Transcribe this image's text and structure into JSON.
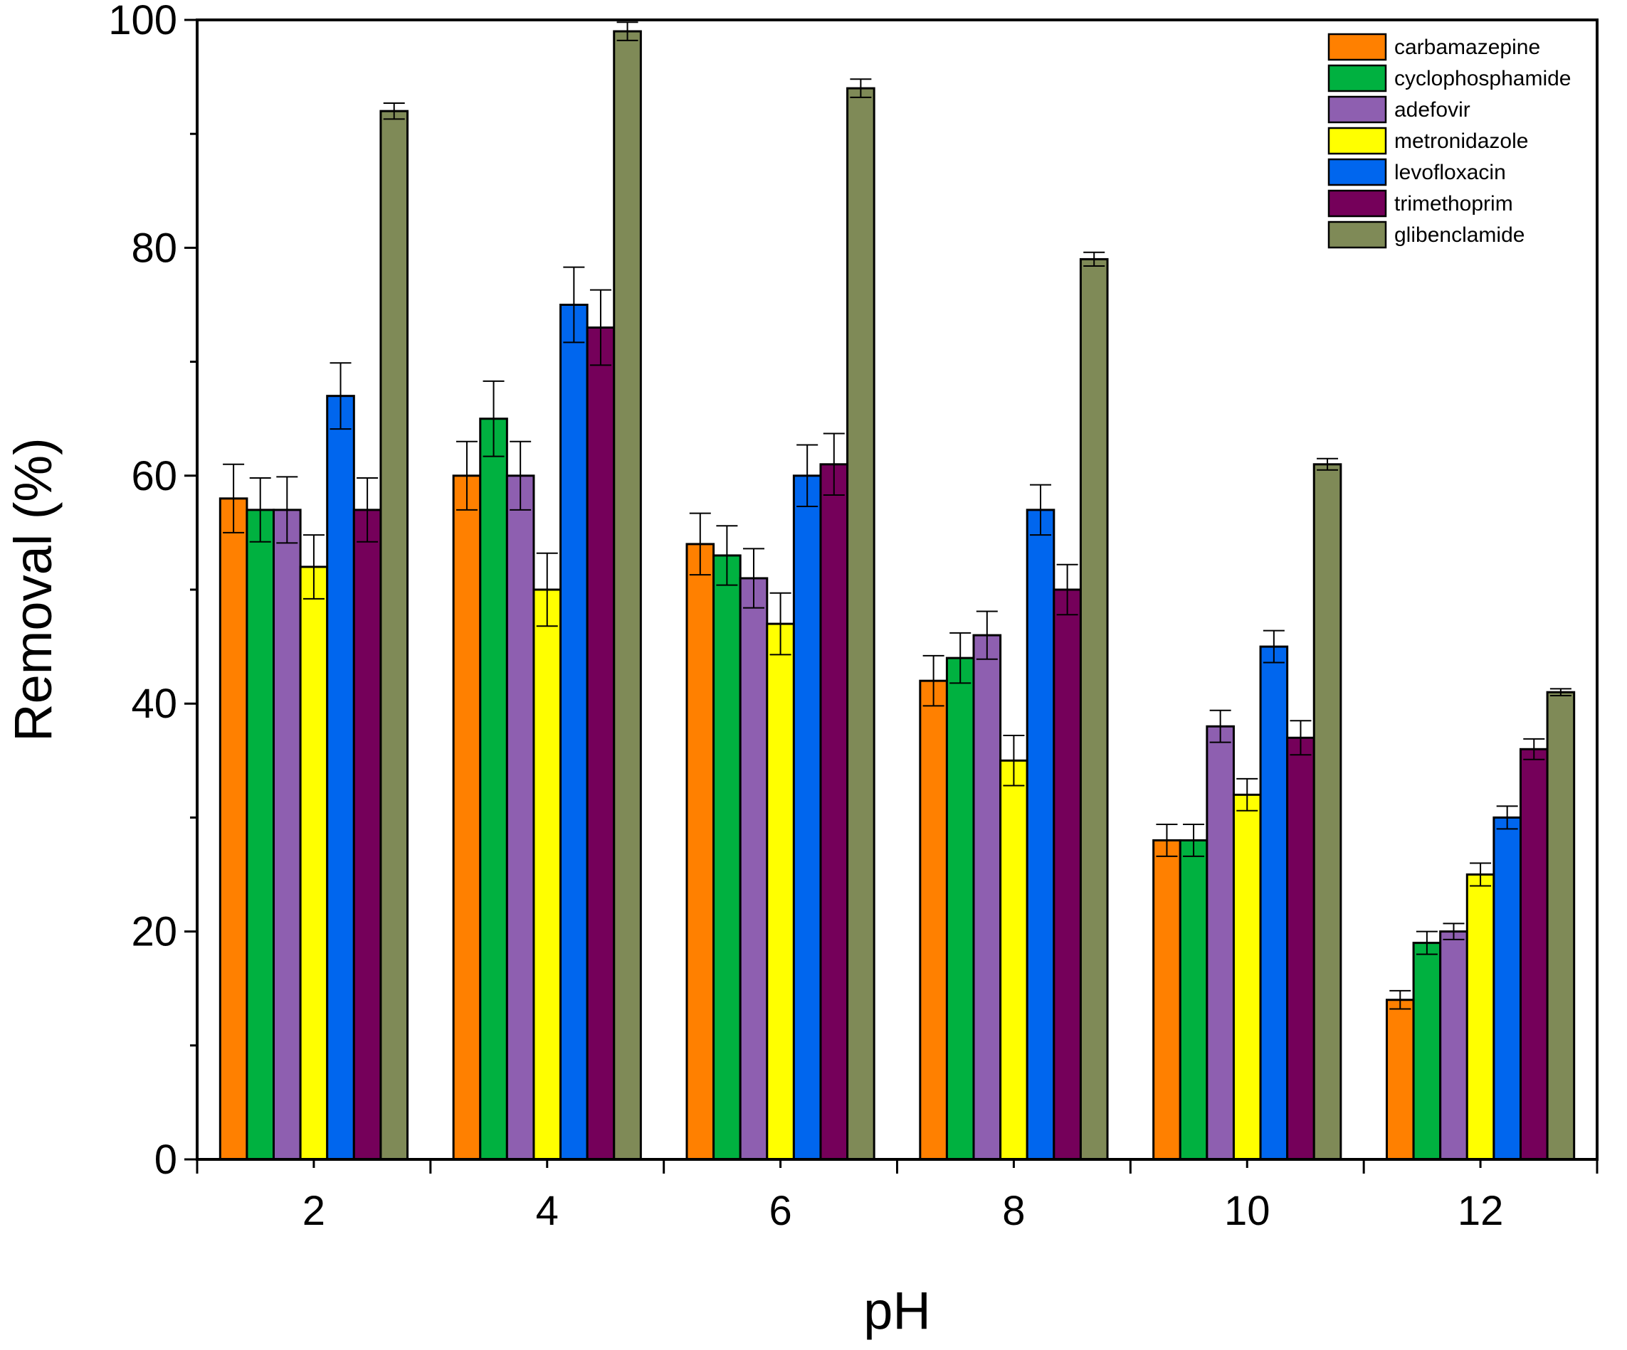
{
  "chart_data": {
    "type": "bar",
    "title": "",
    "xlabel": "pH",
    "ylabel": "Removal (%)",
    "categories": [
      "2",
      "4",
      "6",
      "8",
      "10",
      "12"
    ],
    "ylim": [
      0,
      100
    ],
    "yticks": [
      "0",
      "20",
      "40",
      "60",
      "80",
      "100"
    ],
    "grid": false,
    "legend_position": "top-right",
    "series": [
      {
        "name": "carbamazepine",
        "color": "#ff8000",
        "values": [
          58,
          60,
          54,
          42,
          28,
          14
        ],
        "errors": [
          3,
          3,
          2.7,
          2.2,
          1.4,
          0.8
        ]
      },
      {
        "name": "cyclophosphamide",
        "color": "#00b140",
        "values": [
          57,
          65,
          53,
          44,
          28,
          19
        ],
        "errors": [
          2.8,
          3.3,
          2.6,
          2.2,
          1.4,
          1.0
        ]
      },
      {
        "name": "adefovir",
        "color": "#8e5fb0",
        "values": [
          57,
          60,
          51,
          46,
          38,
          20
        ],
        "errors": [
          2.9,
          3.0,
          2.6,
          2.1,
          1.4,
          0.7
        ]
      },
      {
        "name": "metronidazole",
        "color": "#ffff00",
        "values": [
          52,
          50,
          47,
          35,
          32,
          25
        ],
        "errors": [
          2.8,
          3.2,
          2.7,
          2.2,
          1.4,
          1.0
        ]
      },
      {
        "name": "levofloxacin",
        "color": "#0066ee",
        "values": [
          67,
          75,
          60,
          57,
          45,
          30
        ],
        "errors": [
          2.9,
          3.3,
          2.7,
          2.2,
          1.4,
          1.0
        ]
      },
      {
        "name": "trimethoprim",
        "color": "#75005a",
        "values": [
          57,
          73,
          61,
          50,
          37,
          36
        ],
        "errors": [
          2.8,
          3.3,
          2.7,
          2.2,
          1.5,
          0.9
        ]
      },
      {
        "name": "glibenclamide",
        "color": "#7f8a57",
        "values": [
          92,
          99,
          94,
          79,
          61,
          41
        ],
        "errors": [
          0.7,
          0.8,
          0.8,
          0.6,
          0.5,
          0.3
        ]
      }
    ]
  }
}
